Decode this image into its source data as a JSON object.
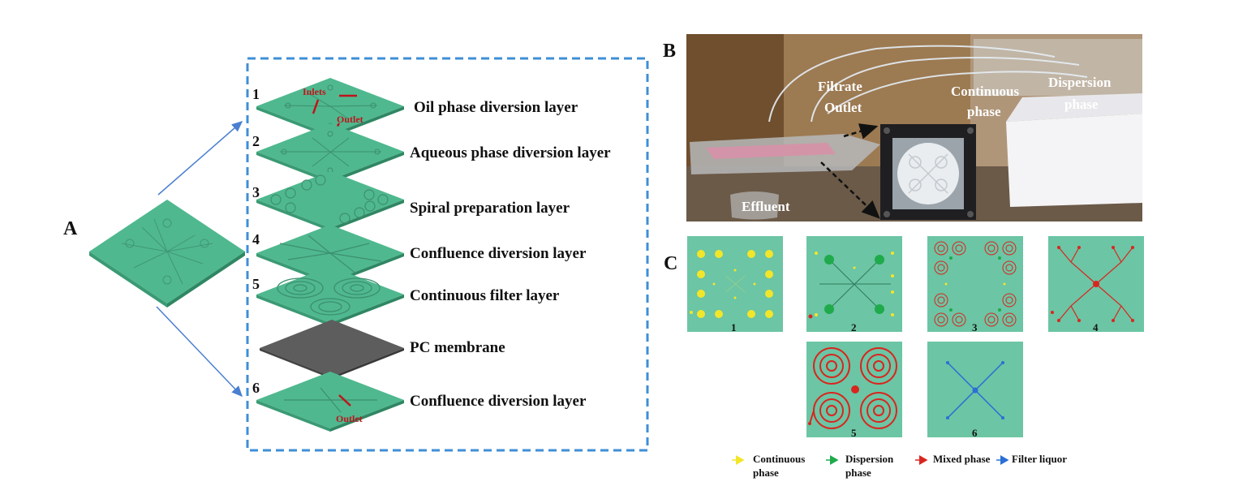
{
  "panels": {
    "a": "A",
    "b": "B",
    "c": "C"
  },
  "layers": [
    {
      "num": "1",
      "label": "Oil phase diversion layer"
    },
    {
      "num": "2",
      "label": "Aqueous phase diversion layer"
    },
    {
      "num": "3",
      "label": "Spiral preparation layer"
    },
    {
      "num": "4",
      "label": "Confluence diversion layer"
    },
    {
      "num": "5",
      "label": "Continuous filter layer"
    },
    {
      "num": "",
      "label": "PC membrane"
    },
    {
      "num": "6",
      "label": "Confluence diversion layer"
    }
  ],
  "annotations": {
    "inlets": "Inlets",
    "outlet_top": "Outlet",
    "outlet_bottom": "Outlet"
  },
  "photo": {
    "filtrate_outlet": [
      "Filtrate",
      "Outlet"
    ],
    "continuous_phase": [
      "Continuous",
      "phase"
    ],
    "dispersion_phase": [
      "Dispersion",
      "phase"
    ],
    "effluent": "Effluent"
  },
  "tiles": [
    "1",
    "2",
    "3",
    "4",
    "5",
    "6"
  ],
  "legend": [
    {
      "label": [
        "Continuous",
        "phase"
      ],
      "color": "#f2e62a"
    },
    {
      "label": [
        "Dispersion",
        "phase"
      ],
      "color": "#1faa4c"
    },
    {
      "label": [
        "Mixed phase"
      ],
      "color": "#d8261f"
    },
    {
      "label": [
        "Filter liquor"
      ],
      "color": "#2a6fd6"
    }
  ],
  "colors": {
    "layer_green": "#4fb88f",
    "tile_green": "#6cc5a4",
    "membrane_gray": "#5d5d5d",
    "dash_blue": "#3f8fd6",
    "arrow_blue": "#4a7fd0"
  }
}
